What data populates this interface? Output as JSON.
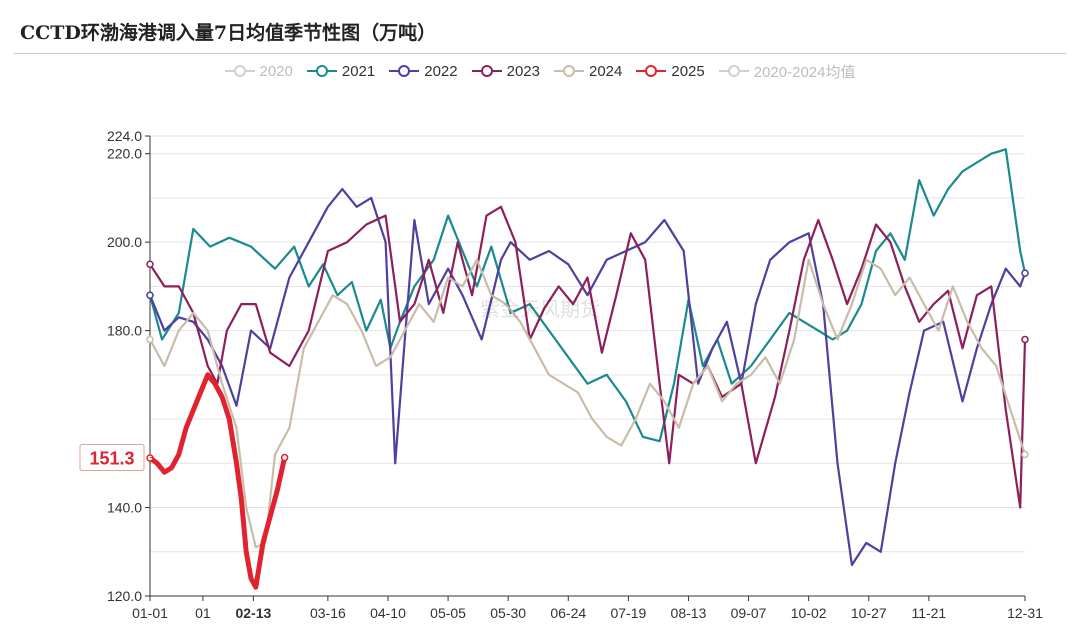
{
  "page": {
    "title": "CCTD环渤海港调入量7日均值季节性图（万吨）"
  },
  "chart_data": {
    "type": "line",
    "title": "CCTD环渤海港调入量7日均值季节性图（万吨）",
    "xlabel": "",
    "ylabel": "",
    "ylim": [
      120,
      224
    ],
    "xlim": [
      0,
      364
    ],
    "y_ticks": [
      "120.0",
      "140.0",
      "180.0",
      "200.0",
      "220.0",
      "224.0"
    ],
    "y_tick_values": [
      120,
      140,
      180,
      200,
      220,
      224
    ],
    "x_ticks": [
      "01-01",
      "01",
      "02-13",
      "03-16",
      "04-10",
      "05-05",
      "05-30",
      "06-24",
      "07-19",
      "08-13",
      "09-07",
      "10-02",
      "10-27",
      "11-21",
      "12-31"
    ],
    "x_tick_days": [
      0,
      22,
      43,
      74,
      99,
      124,
      149,
      174,
      199,
      224,
      249,
      274,
      299,
      324,
      364
    ],
    "highlight_tick": "02-13",
    "current_value_label": "151.3",
    "current_value": 151.3,
    "legend_position": "top-center",
    "grid": true,
    "watermark": "紫金天风期货",
    "series": [
      {
        "name": "2020",
        "color": "#d0d0d0",
        "muted": true,
        "visible": false,
        "days": [],
        "values": []
      },
      {
        "name": "2021",
        "color": "#1a8a8f",
        "days": [
          0,
          5,
          12,
          18,
          25,
          33,
          42,
          52,
          60,
          66,
          72,
          78,
          84,
          90,
          96,
          100,
          104,
          110,
          118,
          124,
          130,
          136,
          142,
          150,
          158,
          166,
          174,
          182,
          190,
          198,
          205,
          212,
          218,
          224,
          230,
          236,
          242,
          250,
          258,
          266,
          272,
          278,
          284,
          290,
          296,
          302,
          308,
          314,
          320,
          326,
          332,
          338,
          344,
          350,
          356,
          362,
          364
        ],
        "values": [
          188,
          178,
          184,
          203,
          199,
          201,
          199,
          194,
          199,
          190,
          195,
          188,
          191,
          180,
          187,
          176,
          182,
          190,
          196,
          206,
          198,
          190,
          199,
          184,
          186,
          180,
          174,
          168,
          170,
          164,
          156,
          155,
          168,
          187,
          172,
          178,
          168,
          172,
          178,
          184,
          182,
          180,
          178,
          180,
          186,
          198,
          202,
          196,
          214,
          206,
          212,
          216,
          218,
          220,
          221,
          198,
          193
        ]
      },
      {
        "name": "2022",
        "color": "#4f3f9e",
        "days": [
          0,
          6,
          12,
          18,
          24,
          30,
          36,
          42,
          50,
          58,
          66,
          74,
          80,
          86,
          92,
          98,
          102,
          106,
          110,
          116,
          124,
          130,
          138,
          146,
          150,
          158,
          166,
          174,
          182,
          190,
          198,
          206,
          214,
          222,
          228,
          234,
          240,
          246,
          252,
          258,
          266,
          274,
          280,
          286,
          292,
          298,
          304,
          310,
          316,
          322,
          330,
          338,
          344,
          350,
          356,
          362,
          364
        ],
        "values": [
          188,
          180,
          183,
          182,
          178,
          172,
          163,
          180,
          176,
          192,
          200,
          208,
          212,
          208,
          210,
          200,
          150,
          178,
          205,
          186,
          194,
          188,
          178,
          196,
          200,
          196,
          198,
          195,
          188,
          196,
          198,
          200,
          205,
          198,
          168,
          176,
          182,
          168,
          186,
          196,
          200,
          202,
          186,
          150,
          127,
          132,
          130,
          150,
          166,
          180,
          182,
          164,
          176,
          186,
          194,
          190,
          193
        ]
      },
      {
        "name": "2023",
        "color": "#8c1f5c",
        "days": [
          0,
          6,
          12,
          18,
          24,
          28,
          32,
          38,
          44,
          50,
          58,
          66,
          74,
          82,
          90,
          98,
          104,
          110,
          116,
          122,
          128,
          134,
          140,
          146,
          152,
          158,
          164,
          170,
          176,
          182,
          188,
          194,
          200,
          206,
          212,
          216,
          220,
          226,
          232,
          238,
          246,
          252,
          260,
          266,
          272,
          278,
          284,
          290,
          296,
          302,
          308,
          314,
          320,
          326,
          332,
          338,
          344,
          350,
          356,
          362,
          364
        ],
        "values": [
          195,
          190,
          190,
          184,
          172,
          168,
          180,
          186,
          186,
          175,
          172,
          180,
          198,
          200,
          204,
          206,
          182,
          186,
          196,
          184,
          200,
          188,
          206,
          208,
          200,
          178,
          185,
          190,
          186,
          192,
          175,
          188,
          202,
          196,
          168,
          150,
          170,
          168,
          172,
          165,
          168,
          150,
          165,
          180,
          196,
          205,
          196,
          186,
          194,
          204,
          200,
          190,
          182,
          186,
          189,
          176,
          188,
          190,
          162,
          140,
          178
        ]
      },
      {
        "name": "2024",
        "color": "#c9bca9",
        "days": [
          0,
          6,
          12,
          18,
          24,
          30,
          36,
          40,
          44,
          48,
          52,
          58,
          64,
          70,
          76,
          82,
          88,
          94,
          100,
          106,
          112,
          118,
          124,
          130,
          136,
          142,
          148,
          154,
          160,
          166,
          172,
          178,
          184,
          190,
          196,
          202,
          208,
          214,
          220,
          226,
          232,
          238,
          244,
          250,
          256,
          262,
          268,
          274,
          280,
          286,
          292,
          298,
          304,
          310,
          316,
          322,
          328,
          334,
          340,
          346,
          352,
          358,
          364
        ],
        "values": [
          178,
          172,
          180,
          184,
          180,
          168,
          158,
          140,
          131,
          132,
          152,
          158,
          176,
          182,
          188,
          186,
          180,
          172,
          174,
          180,
          186,
          182,
          192,
          190,
          196,
          188,
          186,
          182,
          176,
          170,
          168,
          166,
          160,
          156,
          154,
          160,
          168,
          164,
          158,
          168,
          172,
          164,
          168,
          170,
          174,
          168,
          178,
          196,
          186,
          178,
          186,
          196,
          194,
          188,
          192,
          186,
          180,
          190,
          182,
          176,
          172,
          162,
          152
        ]
      },
      {
        "name": "2025",
        "color": "#e0232e",
        "days": [
          0,
          3,
          6,
          9,
          12,
          15,
          18,
          21,
          24,
          27,
          30,
          33,
          36,
          38,
          40,
          42,
          44,
          47,
          50,
          53,
          56
        ],
        "values": [
          151.2,
          150,
          148,
          149,
          152,
          158,
          162,
          166,
          170,
          168,
          165,
          160,
          150,
          142,
          130,
          124,
          122,
          132,
          138,
          144,
          151.3
        ]
      },
      {
        "name": "2020-2024均值",
        "color": "#d0d0d0",
        "muted": true,
        "visible": false,
        "days": [],
        "values": []
      }
    ]
  }
}
